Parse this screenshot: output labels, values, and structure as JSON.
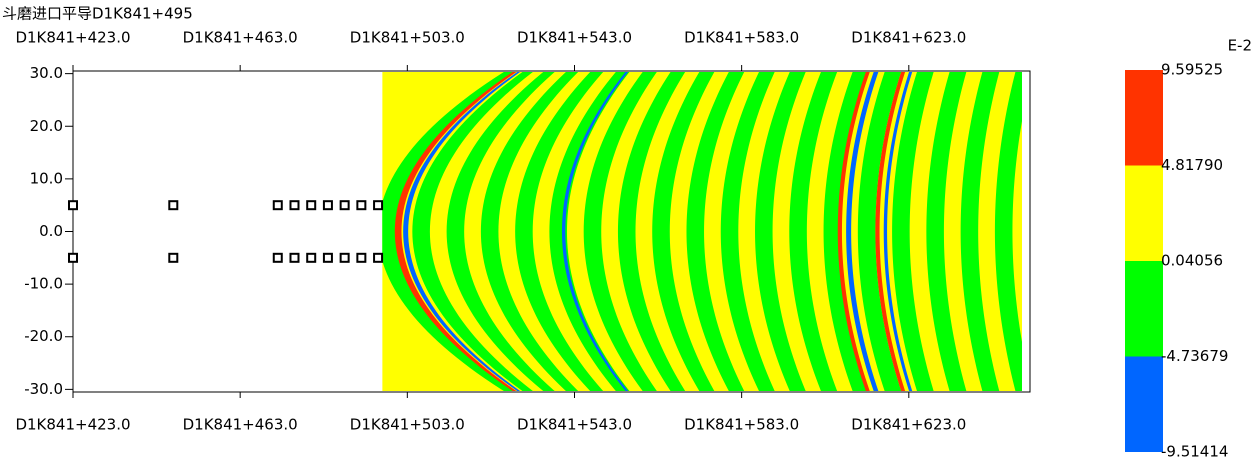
{
  "chart_data": {
    "type": "contour",
    "title": "斗磨进口平导D1K841+495",
    "xlim": [
      423,
      652
    ],
    "ylim": [
      -30.5,
      30.5
    ],
    "xticks": [
      {
        "value": 423,
        "label": "D1K841+423.0"
      },
      {
        "value": 463,
        "label": "D1K841+463.0"
      },
      {
        "value": 503,
        "label": "D1K841+503.0"
      },
      {
        "value": 543,
        "label": "D1K841+543.0"
      },
      {
        "value": 583,
        "label": "D1K841+583.0"
      },
      {
        "value": 623,
        "label": "D1K841+623.0"
      }
    ],
    "yticks": [
      {
        "value": 30,
        "label": "30.0"
      },
      {
        "value": 20,
        "label": "20.0"
      },
      {
        "value": 10,
        "label": "10.0"
      },
      {
        "value": 0,
        "label": "0.0"
      },
      {
        "value": -10,
        "label": "-10.0"
      },
      {
        "value": -20,
        "label": "-20.0"
      },
      {
        "value": -30,
        "label": "-30.0"
      }
    ],
    "field_xlim": [
      497,
      652
    ],
    "points": {
      "x": [
        423,
        447,
        472,
        476,
        480,
        484,
        488,
        492,
        496,
        423,
        447,
        472,
        476,
        480,
        484,
        488,
        492,
        496
      ],
      "y": [
        5,
        5,
        5,
        5,
        5,
        5,
        5,
        5,
        5,
        -5,
        -5,
        -5,
        -5,
        -5,
        -5,
        -5,
        -5,
        -5
      ]
    },
    "colorbar": {
      "scale_label": "E-2",
      "levels": [
        {
          "value": 9.59525,
          "label": "9.59525"
        },
        {
          "value": 4.8179,
          "label": "4.81790"
        },
        {
          "value": 0.04056,
          "label": "0.04056"
        },
        {
          "value": -4.73679,
          "label": "-4.73679"
        },
        {
          "value": -9.51414,
          "label": "-9.51414"
        }
      ],
      "colors": [
        "#ff3300",
        "#ffff00",
        "#00ff00",
        "#0066ff"
      ]
    }
  }
}
